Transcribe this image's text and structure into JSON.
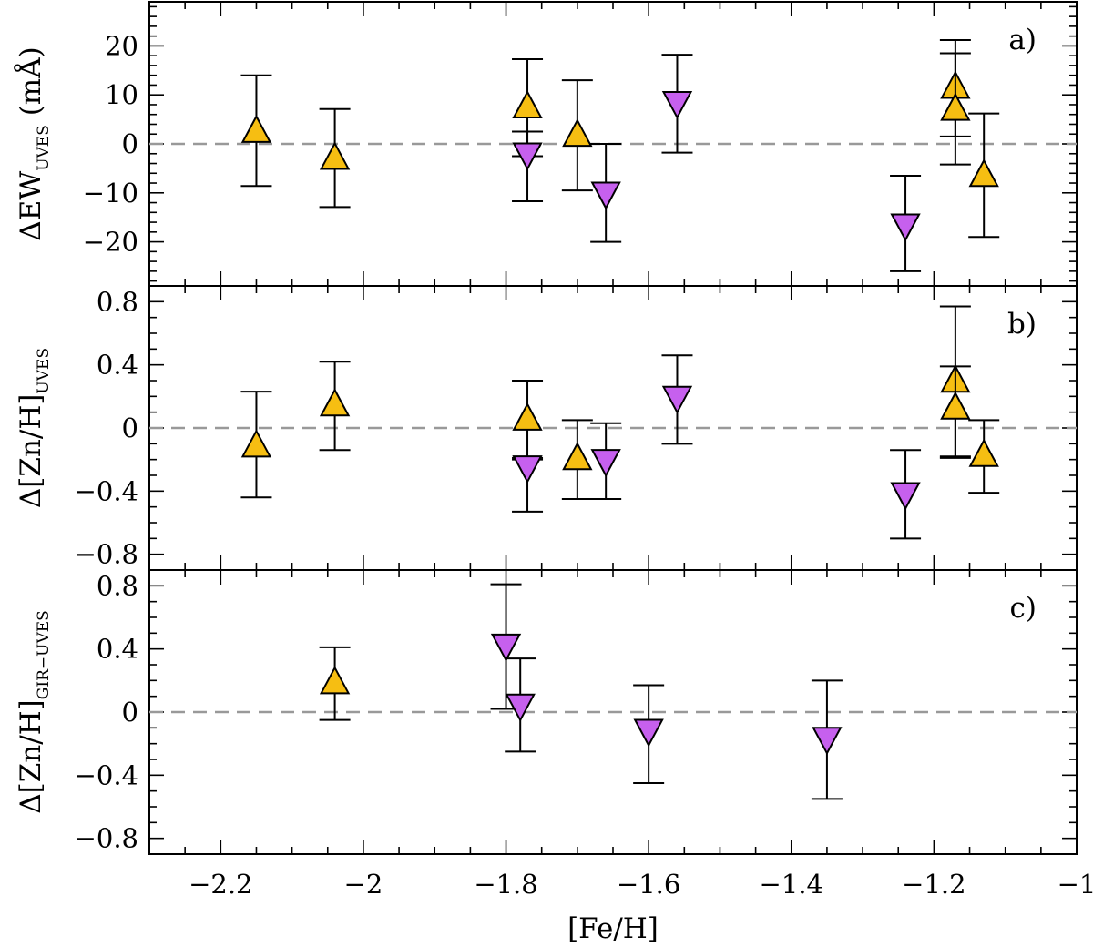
{
  "chart_data": {
    "type": "scatter",
    "x_title": "[Fe/H]",
    "xlim": [
      -2.3,
      -1.0
    ],
    "x_major_ticks": [
      -2.2,
      -2.0,
      -1.8,
      -1.6,
      -1.4,
      -1.2,
      -1.0
    ],
    "x_tick_labels": [
      "−2.2",
      "−2",
      "−1.8",
      "−1.6",
      "−1.4",
      "−1.2",
      "−1"
    ],
    "colors": {
      "up_marker": "#F6BE12",
      "down_marker": "#C660EE",
      "zero_line": "#999999",
      "axis": "#000000"
    },
    "marker_legend": {
      "up": "triangle-up",
      "down": "triangle-down"
    },
    "panels": [
      {
        "id": "a",
        "label": "a)",
        "ylabel": {
          "prefix": "ΔEW",
          "sub": "UVES",
          "suffix": " (mÅ)"
        },
        "ylim": [
          -29.0,
          29.0
        ],
        "y_major_ticks": [
          -20,
          -10,
          0,
          10,
          20
        ],
        "y_tick_labels": [
          "−20",
          "−10",
          "0",
          "10",
          "20"
        ],
        "y_minor_step": 2,
        "points": [
          {
            "x": -2.15,
            "y": 3.0,
            "err_lo": 11.6,
            "err_hi": 11.0,
            "marker": "up"
          },
          {
            "x": -2.04,
            "y": -2.5,
            "err_lo": 10.4,
            "err_hi": 9.6,
            "marker": "up"
          },
          {
            "x": -1.77,
            "y": 8.0,
            "err_lo": 10.5,
            "err_hi": 9.3,
            "marker": "up"
          },
          {
            "x": -1.77,
            "y": -2.5,
            "err_lo": 9.2,
            "err_hi": 5.0,
            "marker": "down"
          },
          {
            "x": -1.7,
            "y": 2.2,
            "err_lo": 11.7,
            "err_hi": 10.8,
            "marker": "up"
          },
          {
            "x": -1.66,
            "y": -10.5,
            "err_lo": 9.5,
            "err_hi": 10.5,
            "marker": "down"
          },
          {
            "x": -1.56,
            "y": 8.0,
            "err_lo": 9.8,
            "err_hi": 10.2,
            "marker": "down"
          },
          {
            "x": -1.24,
            "y": -17.0,
            "err_lo": 9.0,
            "err_hi": 10.5,
            "marker": "down"
          },
          {
            "x": -1.17,
            "y": 12.0,
            "err_lo": 10.5,
            "err_hi": 9.2,
            "marker": "up"
          },
          {
            "x": -1.17,
            "y": 7.5,
            "err_lo": 11.7,
            "err_hi": 11.0,
            "marker": "up"
          },
          {
            "x": -1.13,
            "y": -6.0,
            "err_lo": 13.0,
            "err_hi": 12.2,
            "marker": "up"
          }
        ]
      },
      {
        "id": "b",
        "label": "b)",
        "ylabel": {
          "prefix": "Δ[Zn/H]",
          "sub": "UVES",
          "suffix": ""
        },
        "ylim": [
          -0.9,
          0.9
        ],
        "y_major_ticks": [
          -0.8,
          -0.4,
          0,
          0.4,
          0.8
        ],
        "y_tick_labels": [
          "−0.8",
          "−0.4",
          "0",
          "0.4",
          "0.8"
        ],
        "y_minor_step": 0.1,
        "points": [
          {
            "x": -2.15,
            "y": -0.1,
            "err_lo": 0.34,
            "err_hi": 0.33,
            "marker": "up"
          },
          {
            "x": -2.04,
            "y": 0.16,
            "err_lo": 0.3,
            "err_hi": 0.26,
            "marker": "up"
          },
          {
            "x": -1.77,
            "y": 0.07,
            "err_lo": 0.26,
            "err_hi": 0.23,
            "marker": "up"
          },
          {
            "x": -1.77,
            "y": -0.26,
            "err_lo": 0.27,
            "err_hi": 0.06,
            "marker": "down"
          },
          {
            "x": -1.7,
            "y": -0.18,
            "err_lo": 0.27,
            "err_hi": 0.23,
            "marker": "up"
          },
          {
            "x": -1.66,
            "y": -0.22,
            "err_lo": 0.23,
            "err_hi": 0.25,
            "marker": "down"
          },
          {
            "x": -1.56,
            "y": 0.18,
            "err_lo": 0.28,
            "err_hi": 0.28,
            "marker": "down"
          },
          {
            "x": -1.24,
            "y": -0.43,
            "err_lo": 0.27,
            "err_hi": 0.29,
            "marker": "down"
          },
          {
            "x": -1.17,
            "y": 0.31,
            "err_lo": 0.49,
            "err_hi": 0.46,
            "marker": "up"
          },
          {
            "x": -1.17,
            "y": 0.14,
            "err_lo": 0.33,
            "err_hi": 0.25,
            "marker": "up"
          },
          {
            "x": -1.13,
            "y": -0.16,
            "err_lo": 0.25,
            "err_hi": 0.21,
            "marker": "up"
          }
        ]
      },
      {
        "id": "c",
        "label": "c)",
        "ylabel": {
          "prefix": "Δ[Zn/H]",
          "sub": "GIR−UVES",
          "suffix": ""
        },
        "ylim": [
          -0.9,
          0.9
        ],
        "y_major_ticks": [
          -0.8,
          -0.4,
          0,
          0.4,
          0.8
        ],
        "y_tick_labels": [
          "−0.8",
          "−0.4",
          "0",
          "0.4",
          "0.8"
        ],
        "y_minor_step": 0.1,
        "points": [
          {
            "x": -2.04,
            "y": 0.2,
            "err_lo": 0.25,
            "err_hi": 0.21,
            "marker": "up"
          },
          {
            "x": -1.8,
            "y": 0.41,
            "err_lo": 0.39,
            "err_hi": 0.4,
            "marker": "down"
          },
          {
            "x": -1.78,
            "y": 0.03,
            "err_lo": 0.28,
            "err_hi": 0.31,
            "marker": "down"
          },
          {
            "x": -1.6,
            "y": -0.13,
            "err_lo": 0.32,
            "err_hi": 0.3,
            "marker": "down"
          },
          {
            "x": -1.35,
            "y": -0.18,
            "err_lo": 0.37,
            "err_hi": 0.38,
            "marker": "down"
          }
        ]
      }
    ]
  }
}
